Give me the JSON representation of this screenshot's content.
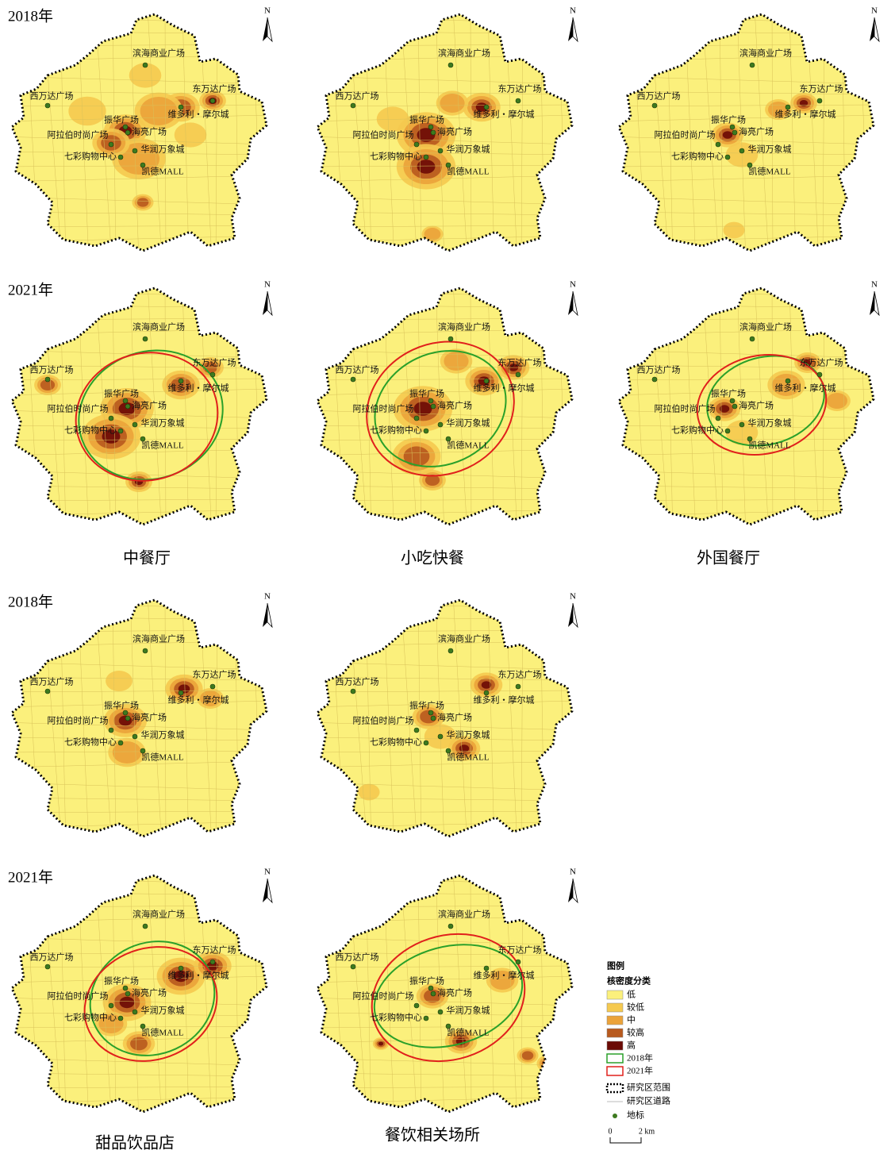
{
  "row_labels": [
    "2018年",
    "2021年",
    "2018年",
    "2021年"
  ],
  "categories": [
    "中餐厅",
    "小吃快餐",
    "外国餐厅",
    "甜品饮品店",
    "餐饮相关场所"
  ],
  "north": "N",
  "landmarks": [
    "滨海商业广场",
    "西万达广场",
    "东万达广场",
    "维多利・摩尔城",
    "振华广场",
    "海亮广场",
    "阿拉伯时尚广场",
    "华润万象城",
    "七彩购物中心",
    "凯德MALL"
  ],
  "legend": {
    "title": "图例",
    "subtitle": "核密度分类",
    "classes": [
      "低",
      "较低",
      "中",
      "较高",
      "高"
    ],
    "ellipses": [
      "2018年",
      "2021年"
    ],
    "boundary": "研究区范围",
    "roads": "研究区道路",
    "landmark": "地标",
    "scale": [
      "0",
      "2 km"
    ]
  }
}
